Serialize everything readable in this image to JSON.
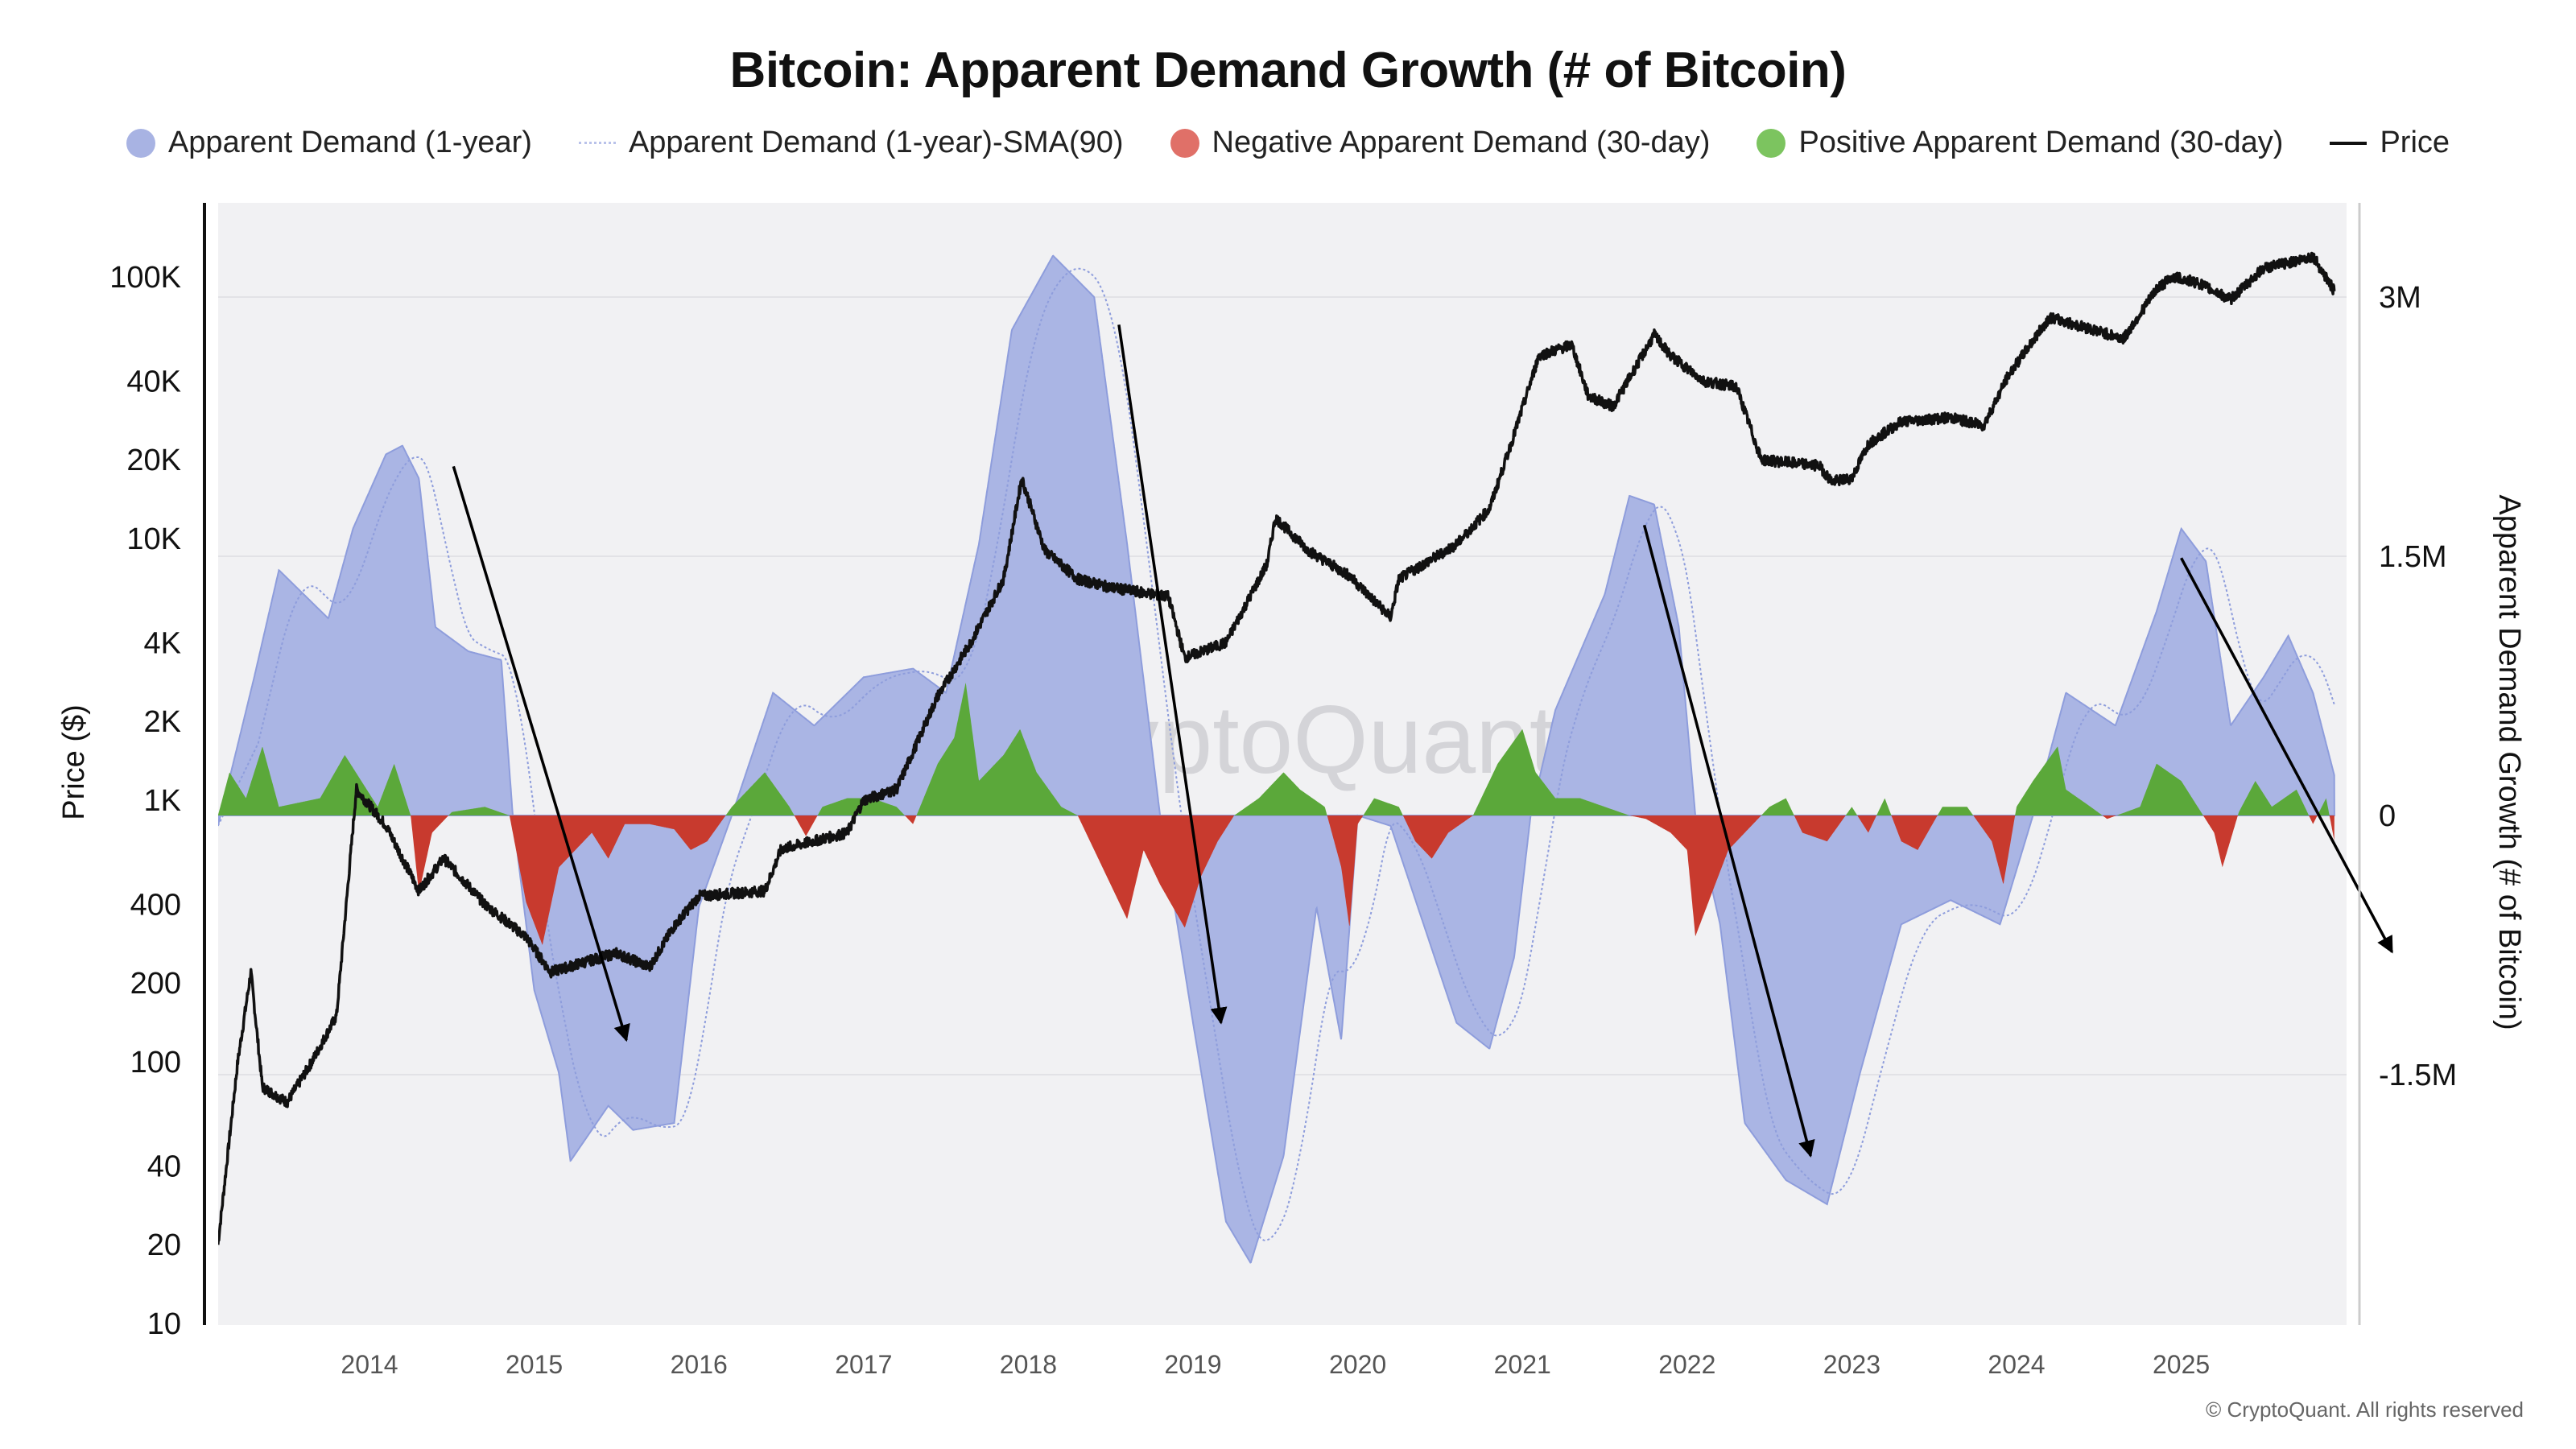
{
  "chart_data": {
    "type": "area+line",
    "title": "Bitcoin: Apparent Demand Growth (# of Bitcoin)",
    "watermark": "CryptoQuant",
    "footer": "© CryptoQuant. All rights reserved",
    "legend_position": "top",
    "legend": [
      {
        "label": "Apparent Demand (1-year)",
        "color": "#a8b3e3",
        "marker": "dot"
      },
      {
        "label": "Apparent Demand (1-year)-SMA(90)",
        "color": "#9aa8e0",
        "marker": "dotted-line"
      },
      {
        "label": "Negative Apparent Demand (30-day)",
        "color": "#e07068",
        "marker": "dot"
      },
      {
        "label": "Positive Apparent Demand (30-day)",
        "color": "#7cc45f",
        "marker": "dot"
      },
      {
        "label": "Price",
        "color": "#111111",
        "marker": "line"
      }
    ],
    "x_axis": {
      "ticks": [
        "2014",
        "2015",
        "2016",
        "2017",
        "2018",
        "2019",
        "2020",
        "2021",
        "2022",
        "2023",
        "2024",
        "2025"
      ],
      "range": [
        2013.08,
        2025.93
      ]
    },
    "y_left": {
      "label": "Price ($)",
      "scale": "log",
      "range": [
        10,
        150000
      ],
      "ticks": [
        {
          "v": 10,
          "t": "10"
        },
        {
          "v": 20,
          "t": "20"
        },
        {
          "v": 40,
          "t": "40"
        },
        {
          "v": 100,
          "t": "100"
        },
        {
          "v": 200,
          "t": "200"
        },
        {
          "v": 400,
          "t": "400"
        },
        {
          "v": 1000,
          "t": "1K"
        },
        {
          "v": 2000,
          "t": "2K"
        },
        {
          "v": 4000,
          "t": "4K"
        },
        {
          "v": 10000,
          "t": "10K"
        },
        {
          "v": 20000,
          "t": "20K"
        },
        {
          "v": 40000,
          "t": "40K"
        },
        {
          "v": 100000,
          "t": "100K"
        }
      ]
    },
    "y_right": {
      "label": "Apparent Demand Growth (# of Bitcoin)",
      "unit": "BTC",
      "range": [
        -2900000,
        3600000
      ],
      "ticks": [
        {
          "v": 3000000,
          "t": "3M"
        },
        {
          "v": 1500000,
          "t": "1.5M"
        },
        {
          "v": 0,
          "t": "0"
        },
        {
          "v": -1500000,
          "t": "-1.5M"
        }
      ]
    },
    "grid": true,
    "colors": {
      "demand_fill": "#aab5e4",
      "demand_stroke": "#8e9ddc",
      "sma": "#8e9ddc",
      "negative": "#c83a2e",
      "positive": "#5ba83a",
      "price": "#111111",
      "plot_bg": "#f1f1f3"
    },
    "series": {
      "apparent_demand_1y": [
        [
          2013.08,
          -0.06
        ],
        [
          2013.3,
          0.8
        ],
        [
          2013.45,
          1.42
        ],
        [
          2013.6,
          1.28
        ],
        [
          2013.75,
          1.14
        ],
        [
          2013.9,
          1.66
        ],
        [
          2014.1,
          2.09
        ],
        [
          2014.2,
          2.14
        ],
        [
          2014.3,
          1.95
        ],
        [
          2014.4,
          1.09
        ],
        [
          2014.6,
          0.95
        ],
        [
          2014.8,
          0.9
        ],
        [
          2014.87,
          0
        ],
        [
          2015.0,
          -1.01
        ],
        [
          2015.15,
          -1.49
        ],
        [
          2015.22,
          -2.0
        ],
        [
          2015.45,
          -1.68
        ],
        [
          2015.6,
          -1.82
        ],
        [
          2015.85,
          -1.78
        ],
        [
          2016.0,
          -0.53
        ],
        [
          2016.2,
          0
        ],
        [
          2016.45,
          0.71
        ],
        [
          2016.7,
          0.52
        ],
        [
          2017.0,
          0.8
        ],
        [
          2017.3,
          0.85
        ],
        [
          2017.5,
          0.71
        ],
        [
          2017.7,
          1.57
        ],
        [
          2017.9,
          2.81
        ],
        [
          2018.15,
          3.24
        ],
        [
          2018.4,
          3.0
        ],
        [
          2018.6,
          1.57
        ],
        [
          2018.8,
          0
        ],
        [
          2019.0,
          -1.2
        ],
        [
          2019.2,
          -2.35
        ],
        [
          2019.35,
          -2.59
        ],
        [
          2019.55,
          -1.97
        ],
        [
          2019.75,
          -0.53
        ],
        [
          2019.9,
          -1.3
        ],
        [
          2020.0,
          0
        ],
        [
          2020.2,
          -0.06
        ],
        [
          2020.4,
          -0.63
        ],
        [
          2020.6,
          -1.2
        ],
        [
          2020.8,
          -1.35
        ],
        [
          2020.95,
          -0.82
        ],
        [
          2021.05,
          0
        ],
        [
          2021.2,
          0.61
        ],
        [
          2021.5,
          1.28
        ],
        [
          2021.65,
          1.85
        ],
        [
          2021.8,
          1.8
        ],
        [
          2021.95,
          1.09
        ],
        [
          2022.05,
          0
        ],
        [
          2022.2,
          -0.63
        ],
        [
          2022.35,
          -1.78
        ],
        [
          2022.6,
          -2.11
        ],
        [
          2022.85,
          -2.25
        ],
        [
          2023.05,
          -1.49
        ],
        [
          2023.3,
          -0.63
        ],
        [
          2023.6,
          -0.49
        ],
        [
          2023.9,
          -0.63
        ],
        [
          2024.1,
          0
        ],
        [
          2024.3,
          0.71
        ],
        [
          2024.6,
          0.52
        ],
        [
          2024.85,
          1.18
        ],
        [
          2025.0,
          1.66
        ],
        [
          2025.15,
          1.47
        ],
        [
          2025.3,
          0.52
        ],
        [
          2025.5,
          0.8
        ],
        [
          2025.65,
          1.04
        ],
        [
          2025.8,
          0.71
        ],
        [
          2025.93,
          0.23
        ]
      ],
      "apparent_demand_30d": [
        [
          2013.08,
          0
        ],
        [
          2013.15,
          0.25
        ],
        [
          2013.25,
          0.1
        ],
        [
          2013.35,
          0.4
        ],
        [
          2013.45,
          0.05
        ],
        [
          2013.7,
          0.1
        ],
        [
          2013.85,
          0.35
        ],
        [
          2013.95,
          0.2
        ],
        [
          2014.05,
          0.05
        ],
        [
          2014.15,
          0.3
        ],
        [
          2014.25,
          0
        ],
        [
          2014.3,
          -0.45
        ],
        [
          2014.38,
          -0.1
        ],
        [
          2014.5,
          0.02
        ],
        [
          2014.7,
          0.05
        ],
        [
          2014.85,
          0
        ],
        [
          2014.95,
          -0.5
        ],
        [
          2015.05,
          -0.75
        ],
        [
          2015.15,
          -0.3
        ],
        [
          2015.25,
          -0.2
        ],
        [
          2015.35,
          -0.1
        ],
        [
          2015.45,
          -0.25
        ],
        [
          2015.55,
          -0.05
        ],
        [
          2015.7,
          -0.05
        ],
        [
          2015.85,
          -0.08
        ],
        [
          2015.95,
          -0.2
        ],
        [
          2016.05,
          -0.15
        ],
        [
          2016.2,
          0.05
        ],
        [
          2016.4,
          0.25
        ],
        [
          2016.55,
          0.05
        ],
        [
          2016.65,
          -0.12
        ],
        [
          2016.75,
          0.05
        ],
        [
          2016.9,
          0.1
        ],
        [
          2017.05,
          0.1
        ],
        [
          2017.2,
          0.05
        ],
        [
          2017.3,
          -0.05
        ],
        [
          2017.45,
          0.3
        ],
        [
          2017.55,
          0.45
        ],
        [
          2017.62,
          0.77
        ],
        [
          2017.7,
          0.2
        ],
        [
          2017.85,
          0.35
        ],
        [
          2017.95,
          0.5
        ],
        [
          2018.05,
          0.25
        ],
        [
          2018.2,
          0.05
        ],
        [
          2018.3,
          0
        ],
        [
          2018.45,
          -0.3
        ],
        [
          2018.6,
          -0.6
        ],
        [
          2018.7,
          -0.2
        ],
        [
          2018.8,
          -0.4
        ],
        [
          2018.95,
          -0.65
        ],
        [
          2019.05,
          -0.35
        ],
        [
          2019.15,
          -0.15
        ],
        [
          2019.25,
          0
        ],
        [
          2019.4,
          0.1
        ],
        [
          2019.55,
          0.25
        ],
        [
          2019.65,
          0.15
        ],
        [
          2019.8,
          0.05
        ],
        [
          2019.9,
          -0.3
        ],
        [
          2019.95,
          -0.65
        ],
        [
          2020.0,
          -0.05
        ],
        [
          2020.1,
          0.1
        ],
        [
          2020.25,
          0.05
        ],
        [
          2020.35,
          -0.15
        ],
        [
          2020.45,
          -0.25
        ],
        [
          2020.55,
          -0.1
        ],
        [
          2020.7,
          0
        ],
        [
          2020.85,
          0.3
        ],
        [
          2021.0,
          0.5
        ],
        [
          2021.08,
          0.25
        ],
        [
          2021.2,
          0.1
        ],
        [
          2021.35,
          0.1
        ],
        [
          2021.5,
          0.05
        ],
        [
          2021.65,
          0
        ],
        [
          2021.75,
          -0.02
        ],
        [
          2021.9,
          -0.1
        ],
        [
          2022.0,
          -0.2
        ],
        [
          2022.05,
          -0.7
        ],
        [
          2022.15,
          -0.45
        ],
        [
          2022.25,
          -0.2
        ],
        [
          2022.35,
          -0.1
        ],
        [
          2022.5,
          0.05
        ],
        [
          2022.6,
          0.1
        ],
        [
          2022.7,
          -0.1
        ],
        [
          2022.85,
          -0.15
        ],
        [
          2023.0,
          0.05
        ],
        [
          2023.1,
          -0.1
        ],
        [
          2023.2,
          0.1
        ],
        [
          2023.3,
          -0.15
        ],
        [
          2023.4,
          -0.2
        ],
        [
          2023.55,
          0.05
        ],
        [
          2023.7,
          0.05
        ],
        [
          2023.85,
          -0.15
        ],
        [
          2023.92,
          -0.4
        ],
        [
          2024.0,
          0.05
        ],
        [
          2024.1,
          0.2
        ],
        [
          2024.25,
          0.4
        ],
        [
          2024.3,
          0.15
        ],
        [
          2024.45,
          0.05
        ],
        [
          2024.55,
          -0.02
        ],
        [
          2024.75,
          0.05
        ],
        [
          2024.85,
          0.3
        ],
        [
          2025.0,
          0.2
        ],
        [
          2025.1,
          0.05
        ],
        [
          2025.2,
          -0.1
        ],
        [
          2025.25,
          -0.3
        ],
        [
          2025.35,
          0.02
        ],
        [
          2025.45,
          0.2
        ],
        [
          2025.55,
          0.05
        ],
        [
          2025.7,
          0.15
        ],
        [
          2025.8,
          -0.05
        ],
        [
          2025.88,
          0.1
        ],
        [
          2025.93,
          -0.15
        ]
      ],
      "price": [
        [
          2013.08,
          20
        ],
        [
          2013.2,
          100
        ],
        [
          2013.28,
          220
        ],
        [
          2013.35,
          80
        ],
        [
          2013.5,
          70
        ],
        [
          2013.65,
          100
        ],
        [
          2013.8,
          150
        ],
        [
          2013.92,
          1100
        ],
        [
          2014.1,
          800
        ],
        [
          2014.3,
          450
        ],
        [
          2014.45,
          600
        ],
        [
          2014.7,
          400
        ],
        [
          2014.95,
          300
        ],
        [
          2015.1,
          220
        ],
        [
          2015.3,
          240
        ],
        [
          2015.5,
          260
        ],
        [
          2015.7,
          230
        ],
        [
          2015.85,
          330
        ],
        [
          2016.0,
          430
        ],
        [
          2016.4,
          450
        ],
        [
          2016.5,
          650
        ],
        [
          2016.9,
          750
        ],
        [
          2017.0,
          1000
        ],
        [
          2017.2,
          1100
        ],
        [
          2017.45,
          2500
        ],
        [
          2017.65,
          4000
        ],
        [
          2017.85,
          7000
        ],
        [
          2017.96,
          17000
        ],
        [
          2018.1,
          9000
        ],
        [
          2018.3,
          7000
        ],
        [
          2018.5,
          6500
        ],
        [
          2018.85,
          6000
        ],
        [
          2018.95,
          3500
        ],
        [
          2019.2,
          4000
        ],
        [
          2019.45,
          8000
        ],
        [
          2019.5,
          12000
        ],
        [
          2019.7,
          9000
        ],
        [
          2019.95,
          7200
        ],
        [
          2020.2,
          5000
        ],
        [
          2020.25,
          7000
        ],
        [
          2020.6,
          9500
        ],
        [
          2020.8,
          13000
        ],
        [
          2020.95,
          25000
        ],
        [
          2021.1,
          50000
        ],
        [
          2021.3,
          55000
        ],
        [
          2021.4,
          35000
        ],
        [
          2021.55,
          32000
        ],
        [
          2021.8,
          60000
        ],
        [
          2021.9,
          50000
        ],
        [
          2022.1,
          40000
        ],
        [
          2022.3,
          38000
        ],
        [
          2022.45,
          20000
        ],
        [
          2022.8,
          19000
        ],
        [
          2022.88,
          16500
        ],
        [
          2023.0,
          17000
        ],
        [
          2023.1,
          23000
        ],
        [
          2023.3,
          28000
        ],
        [
          2023.6,
          29000
        ],
        [
          2023.8,
          27000
        ],
        [
          2023.95,
          42000
        ],
        [
          2024.2,
          70000
        ],
        [
          2024.5,
          62000
        ],
        [
          2024.65,
          58000
        ],
        [
          2024.85,
          90000
        ],
        [
          2024.95,
          100000
        ],
        [
          2025.1,
          95000
        ],
        [
          2025.3,
          82000
        ],
        [
          2025.5,
          108000
        ],
        [
          2025.7,
          115000
        ],
        [
          2025.8,
          120000
        ],
        [
          2025.93,
          88000
        ]
      ]
    },
    "annotations": [
      {
        "type": "arrow",
        "from": [
          2014.51,
          2.02
        ],
        "to": [
          2015.56,
          -1.3
        ]
      },
      {
        "type": "arrow",
        "from": [
          2018.55,
          2.84
        ],
        "to": [
          2019.17,
          -1.2
        ]
      },
      {
        "type": "arrow",
        "from": [
          2021.74,
          1.68
        ],
        "to": [
          2022.75,
          -1.97
        ]
      },
      {
        "type": "arrow",
        "from": [
          2025.0,
          1.49
        ],
        "to": [
          2026.28,
          -0.79
        ]
      }
    ]
  }
}
